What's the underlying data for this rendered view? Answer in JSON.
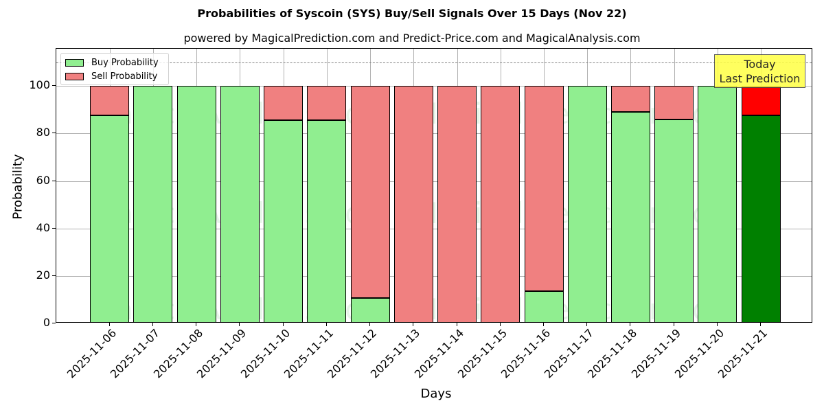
{
  "title": "Probabilities of Syscoin (SYS) Buy/Sell Signals Over 15 Days (Nov 22)",
  "subtitle": "powered by MagicalPrediction.com and Predict-Price.com and MagicalAnalysis.com",
  "legend": {
    "buy": "Buy Probability",
    "sell": "Sell Probability"
  },
  "annotation": {
    "line1": "Today",
    "line2": "Last Prediction"
  },
  "watermarks": [
    "MagicalAnalysis.com",
    "MagicalPrediction.com"
  ],
  "colors": {
    "buy": "#90ee90",
    "sell": "#f08080",
    "today_buy": "#008000",
    "today_sell": "#ff0000",
    "annotation_bg": "#ffff44"
  },
  "chart_data": {
    "type": "bar",
    "stacked": true,
    "title": "Probabilities of Syscoin (SYS) Buy/Sell Signals Over 15 Days (Nov 22)",
    "subtitle": "powered by MagicalPrediction.com and Predict-Price.com and MagicalAnalysis.com",
    "xlabel": "Days",
    "ylabel": "Probability",
    "ylim": [
      0,
      115.7
    ],
    "yticks": [
      0,
      20,
      40,
      60,
      80,
      100
    ],
    "grid": true,
    "legend_position": "upper left",
    "reference_line": {
      "y": 110,
      "style": "dashed",
      "color": "#808080"
    },
    "categories": [
      "2025-11-06",
      "2025-11-07",
      "2025-11-08",
      "2025-11-09",
      "2025-11-10",
      "2025-11-11",
      "2025-11-12",
      "2025-11-13",
      "2025-11-14",
      "2025-11-15",
      "2025-11-16",
      "2025-11-17",
      "2025-11-18",
      "2025-11-19",
      "2025-11-20",
      "2025-11-21"
    ],
    "series": [
      {
        "name": "Buy Probability",
        "values": [
          87.7,
          100,
          100,
          100,
          85.6,
          85.6,
          10.7,
          0,
          0,
          0,
          13.7,
          100,
          89.2,
          85.8,
          100,
          87.7
        ]
      },
      {
        "name": "Sell Probability",
        "values": [
          12.3,
          0,
          0,
          0,
          14.4,
          14.4,
          89.3,
          100,
          100,
          100,
          86.3,
          0,
          10.8,
          14.2,
          0,
          12.3
        ]
      }
    ],
    "highlight": {
      "index": 15,
      "label": "Today\nLast Prediction"
    }
  }
}
